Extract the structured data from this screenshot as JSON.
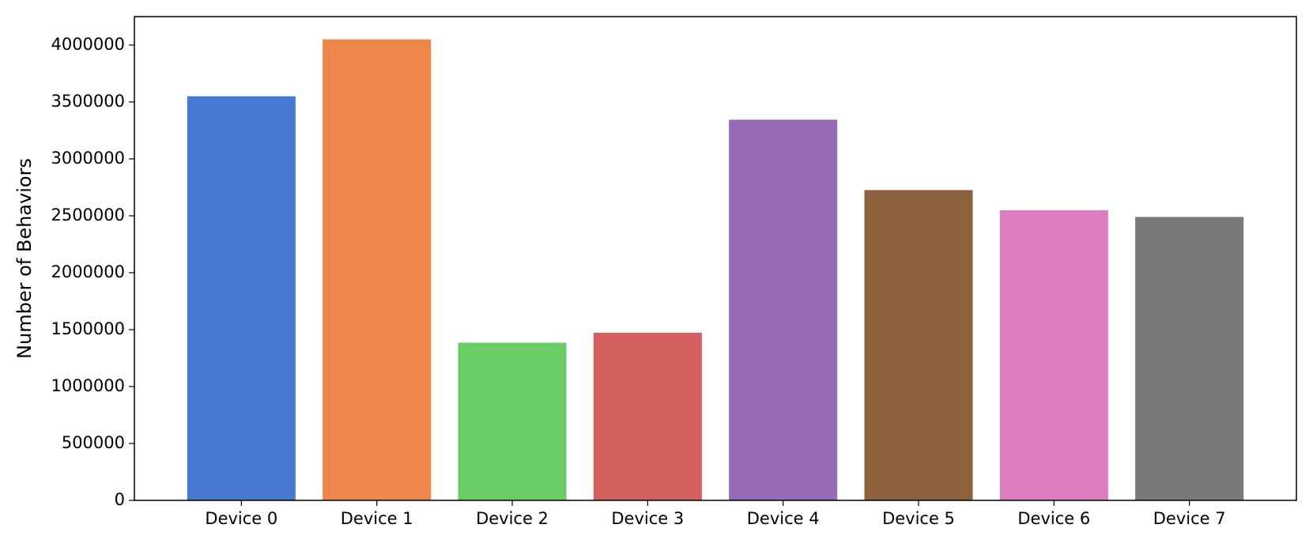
{
  "chart_data": {
    "type": "bar",
    "y_label": "Number of Behaviors",
    "categories": [
      "Device 0",
      "Device 1",
      "Device 2",
      "Device 3",
      "Device 4",
      "Device 5",
      "Device 6",
      "Device 7"
    ],
    "values": [
      3550000,
      4050000,
      1385000,
      1473000,
      3344000,
      2726000,
      2549000,
      2490000
    ],
    "colors": [
      "#4878cf",
      "#ee854a",
      "#6acc64",
      "#d65f5f",
      "#956cb4",
      "#8c613c",
      "#dc7ec0",
      "#797979"
    ],
    "ylim": [
      0,
      4250000
    ],
    "yticks": [
      0,
      500000,
      1000000,
      1500000,
      2000000,
      2500000,
      3000000,
      3500000,
      4000000
    ],
    "grid": false
  }
}
